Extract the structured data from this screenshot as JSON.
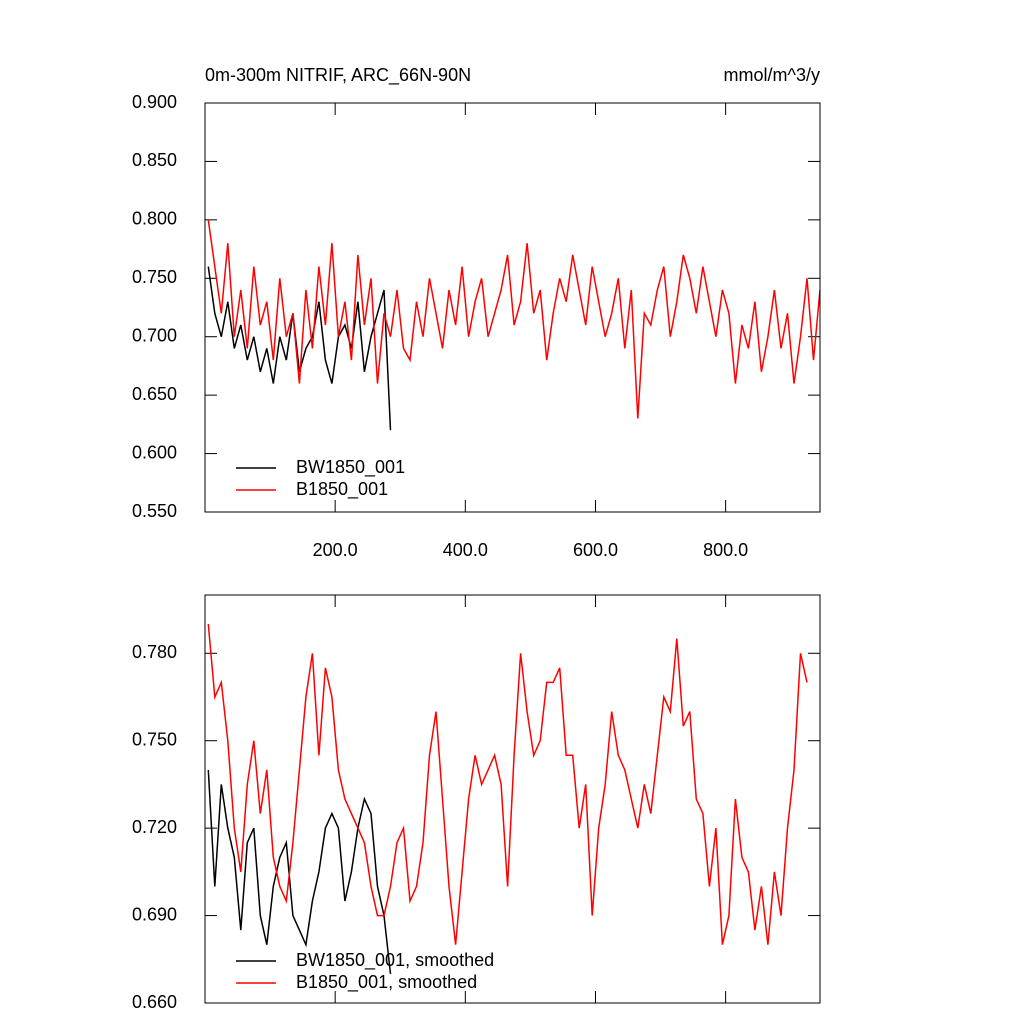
{
  "chart_data": [
    {
      "type": "line",
      "title": "0m-300m NITRIF, ARC_66N-90N",
      "units": "mmol/m^3/y",
      "xlim": [
        0,
        945
      ],
      "ylim": [
        0.55,
        0.9
      ],
      "xticks": [
        {
          "value": 200,
          "label": "200.0"
        },
        {
          "value": 400,
          "label": "400.0"
        },
        {
          "value": 600,
          "label": "600.0"
        },
        {
          "value": 800,
          "label": "800.0"
        }
      ],
      "yticks": [
        {
          "value": 0.55,
          "label": "0.550"
        },
        {
          "value": 0.6,
          "label": "0.600"
        },
        {
          "value": 0.65,
          "label": "0.650"
        },
        {
          "value": 0.7,
          "label": "0.700"
        },
        {
          "value": 0.75,
          "label": "0.750"
        },
        {
          "value": 0.8,
          "label": "0.800"
        },
        {
          "value": 0.85,
          "label": "0.850"
        },
        {
          "value": 0.9,
          "label": "0.900"
        }
      ],
      "series": [
        {
          "name": "BW1850_001",
          "color": "#000000",
          "x": [
            5,
            15,
            25,
            35,
            45,
            55,
            65,
            75,
            85,
            95,
            105,
            115,
            125,
            135,
            145,
            155,
            165,
            175,
            185,
            195,
            205,
            215,
            225,
            235,
            245,
            255,
            265,
            275,
            285
          ],
          "values": [
            0.76,
            0.72,
            0.7,
            0.73,
            0.69,
            0.71,
            0.68,
            0.7,
            0.67,
            0.69,
            0.66,
            0.7,
            0.68,
            0.72,
            0.67,
            0.69,
            0.7,
            0.73,
            0.68,
            0.66,
            0.7,
            0.71,
            0.69,
            0.73,
            0.67,
            0.7,
            0.72,
            0.74,
            0.62
          ]
        },
        {
          "name": "B1850_001",
          "color": "#ff0000",
          "x": [
            5,
            15,
            25,
            35,
            45,
            55,
            65,
            75,
            85,
            95,
            105,
            115,
            125,
            135,
            145,
            155,
            165,
            175,
            185,
            195,
            205,
            215,
            225,
            235,
            245,
            255,
            265,
            275,
            285,
            295,
            305,
            315,
            325,
            335,
            345,
            355,
            365,
            375,
            385,
            395,
            405,
            415,
            425,
            435,
            445,
            455,
            465,
            475,
            485,
            495,
            505,
            515,
            525,
            535,
            545,
            555,
            565,
            575,
            585,
            595,
            605,
            615,
            625,
            635,
            645,
            655,
            665,
            675,
            685,
            695,
            705,
            715,
            725,
            735,
            745,
            755,
            765,
            775,
            785,
            795,
            805,
            815,
            825,
            835,
            845,
            855,
            865,
            875,
            885,
            895,
            905,
            915,
            925,
            935,
            945
          ],
          "values": [
            0.8,
            0.76,
            0.72,
            0.78,
            0.7,
            0.74,
            0.69,
            0.76,
            0.71,
            0.73,
            0.68,
            0.75,
            0.7,
            0.72,
            0.66,
            0.74,
            0.69,
            0.76,
            0.71,
            0.78,
            0.7,
            0.73,
            0.68,
            0.77,
            0.71,
            0.75,
            0.66,
            0.72,
            0.7,
            0.74,
            0.69,
            0.68,
            0.73,
            0.7,
            0.75,
            0.72,
            0.69,
            0.74,
            0.71,
            0.76,
            0.7,
            0.73,
            0.75,
            0.7,
            0.72,
            0.74,
            0.77,
            0.71,
            0.73,
            0.78,
            0.72,
            0.74,
            0.68,
            0.72,
            0.75,
            0.73,
            0.77,
            0.74,
            0.71,
            0.76,
            0.73,
            0.7,
            0.72,
            0.75,
            0.69,
            0.74,
            0.63,
            0.72,
            0.71,
            0.74,
            0.76,
            0.7,
            0.73,
            0.77,
            0.75,
            0.72,
            0.76,
            0.73,
            0.7,
            0.74,
            0.72,
            0.66,
            0.71,
            0.69,
            0.73,
            0.67,
            0.7,
            0.74,
            0.69,
            0.72,
            0.66,
            0.7,
            0.75,
            0.68,
            0.74
          ]
        }
      ]
    },
    {
      "type": "line",
      "xlim": [
        0,
        945
      ],
      "ylim": [
        0.66,
        0.8
      ],
      "xticks": [
        200,
        400,
        600,
        800
      ],
      "yticks": [
        {
          "value": 0.66,
          "label": "0.660"
        },
        {
          "value": 0.69,
          "label": "0.690"
        },
        {
          "value": 0.72,
          "label": "0.720"
        },
        {
          "value": 0.75,
          "label": "0.750"
        },
        {
          "value": 0.78,
          "label": "0.780"
        }
      ],
      "series": [
        {
          "name": "BW1850_001, smoothed",
          "color": "#000000",
          "x": [
            5,
            15,
            25,
            35,
            45,
            55,
            65,
            75,
            85,
            95,
            105,
            115,
            125,
            135,
            145,
            155,
            165,
            175,
            185,
            195,
            205,
            215,
            225,
            235,
            245,
            255,
            265,
            275,
            285
          ],
          "values": [
            0.74,
            0.7,
            0.735,
            0.72,
            0.71,
            0.685,
            0.715,
            0.72,
            0.69,
            0.68,
            0.7,
            0.71,
            0.715,
            0.69,
            0.685,
            0.68,
            0.695,
            0.705,
            0.72,
            0.725,
            0.72,
            0.695,
            0.705,
            0.72,
            0.73,
            0.725,
            0.7,
            0.69,
            0.67
          ]
        },
        {
          "name": "B1850_001, smoothed",
          "color": "#ff0000",
          "x": [
            5,
            15,
            25,
            35,
            45,
            55,
            65,
            75,
            85,
            95,
            105,
            115,
            125,
            135,
            145,
            155,
            165,
            175,
            185,
            195,
            205,
            215,
            225,
            235,
            245,
            255,
            265,
            275,
            285,
            295,
            305,
            315,
            325,
            335,
            345,
            355,
            365,
            375,
            385,
            395,
            405,
            415,
            425,
            435,
            445,
            455,
            465,
            475,
            485,
            495,
            505,
            515,
            525,
            535,
            545,
            555,
            565,
            575,
            585,
            595,
            605,
            615,
            625,
            635,
            645,
            655,
            665,
            675,
            685,
            695,
            705,
            715,
            725,
            735,
            745,
            755,
            765,
            775,
            785,
            795,
            805,
            815,
            825,
            835,
            845,
            855,
            865,
            875,
            885,
            895,
            905,
            915,
            925
          ],
          "values": [
            0.79,
            0.765,
            0.77,
            0.75,
            0.72,
            0.705,
            0.735,
            0.75,
            0.725,
            0.74,
            0.71,
            0.7,
            0.695,
            0.715,
            0.74,
            0.765,
            0.78,
            0.745,
            0.775,
            0.765,
            0.74,
            0.73,
            0.725,
            0.72,
            0.715,
            0.7,
            0.69,
            0.69,
            0.7,
            0.715,
            0.72,
            0.695,
            0.7,
            0.715,
            0.745,
            0.76,
            0.73,
            0.7,
            0.68,
            0.705,
            0.73,
            0.745,
            0.735,
            0.74,
            0.745,
            0.735,
            0.7,
            0.745,
            0.78,
            0.76,
            0.745,
            0.75,
            0.77,
            0.77,
            0.775,
            0.745,
            0.745,
            0.72,
            0.735,
            0.69,
            0.72,
            0.735,
            0.76,
            0.745,
            0.74,
            0.73,
            0.72,
            0.735,
            0.725,
            0.745,
            0.765,
            0.76,
            0.785,
            0.755,
            0.76,
            0.73,
            0.725,
            0.7,
            0.72,
            0.68,
            0.69,
            0.73,
            0.71,
            0.705,
            0.685,
            0.7,
            0.68,
            0.705,
            0.69,
            0.72,
            0.74,
            0.78,
            0.77
          ]
        }
      ]
    }
  ]
}
